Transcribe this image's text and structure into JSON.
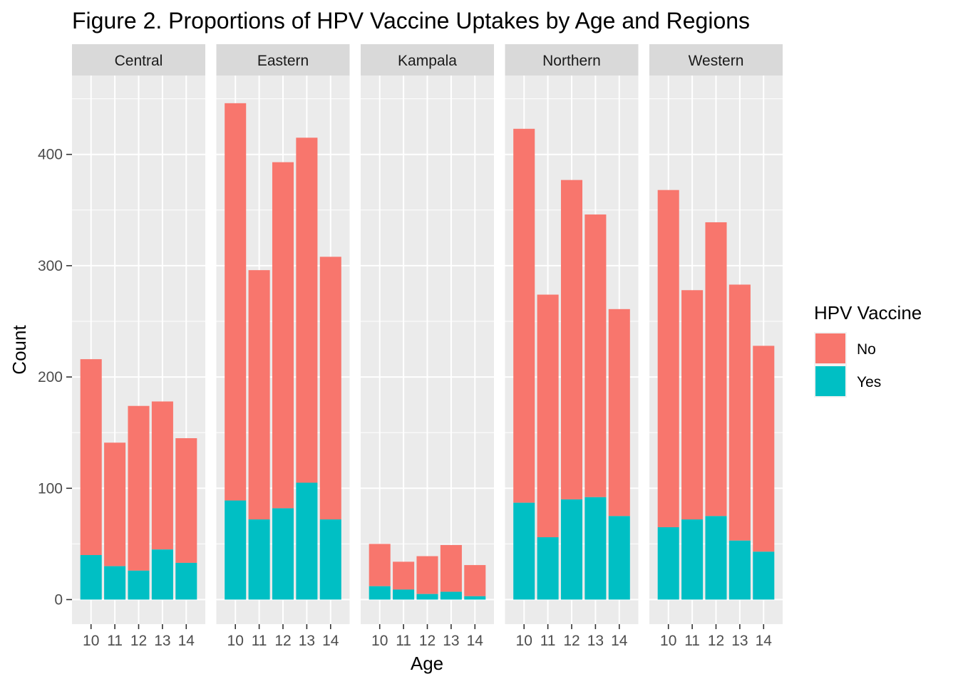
{
  "chart_data": {
    "type": "bar",
    "stacked": true,
    "title": "Figure 2. Proportions of HPV Vaccine Uptakes by Age and Regions",
    "xlabel": "Age",
    "ylabel": "Count",
    "ylim": [
      -22,
      472
    ],
    "y_ticks": [
      0,
      100,
      200,
      300,
      400
    ],
    "grid": true,
    "facets": [
      "Central",
      "Eastern",
      "Kampala",
      "Northern",
      "Western"
    ],
    "categories": [
      "10",
      "11",
      "12",
      "13",
      "14"
    ],
    "legend": {
      "title": "HPV Vaccine",
      "position": "right",
      "items": [
        {
          "label": "No",
          "color": "#F8766D"
        },
        {
          "label": "Yes",
          "color": "#00BFC4"
        }
      ]
    },
    "series": [
      {
        "name": "No",
        "color": "#F8766D",
        "values": {
          "Central": [
            176,
            111,
            148,
            133,
            112
          ],
          "Eastern": [
            357,
            224,
            311,
            310,
            236
          ],
          "Kampala": [
            38,
            25,
            34,
            42,
            28
          ],
          "Northern": [
            336,
            218,
            287,
            254,
            186
          ],
          "Western": [
            303,
            206,
            264,
            230,
            185
          ]
        }
      },
      {
        "name": "Yes",
        "color": "#00BFC4",
        "values": {
          "Central": [
            40,
            30,
            26,
            45,
            33
          ],
          "Eastern": [
            89,
            72,
            82,
            105,
            72
          ],
          "Kampala": [
            12,
            9,
            5,
            7,
            3
          ],
          "Northern": [
            87,
            56,
            90,
            92,
            75
          ],
          "Western": [
            65,
            72,
            75,
            53,
            43
          ]
        }
      }
    ]
  }
}
